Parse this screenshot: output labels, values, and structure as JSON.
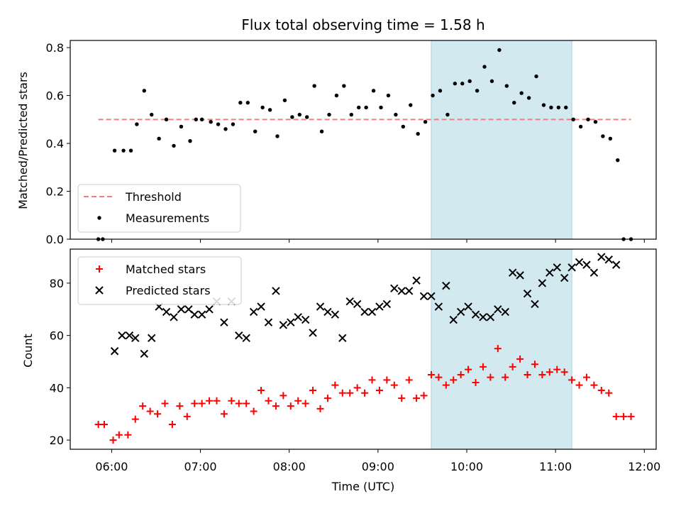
{
  "chart_data": [
    {
      "type": "scatter",
      "title": "Flux total observing time = 1.58 h",
      "xlabel": "",
      "ylabel": "Matched/Predicted stars",
      "xlim": [
        "05:32",
        "12:08"
      ],
      "ylim": [
        0.0,
        0.83
      ],
      "yticks": [
        0.0,
        0.2,
        0.4,
        0.6,
        0.8
      ],
      "ytick_labels": [
        "0.0",
        "0.2",
        "0.4",
        "0.6",
        "0.8"
      ],
      "highlight_span": {
        "start": "09:36",
        "end": "11:11",
        "color": "#d3e9f0"
      },
      "legend": {
        "position": "lower-left",
        "entries": [
          "Threshold",
          "Measurements"
        ]
      },
      "series": [
        {
          "name": "Threshold",
          "kind": "dashed-line",
          "color": "#f08080",
          "x": [
            "05:51",
            "11:51"
          ],
          "y": [
            0.5,
            0.5
          ]
        },
        {
          "name": "Measurements",
          "kind": "dot",
          "color": "#000000",
          "x": [
            "05:51",
            "05:54",
            "06:02",
            "06:08",
            "06:13",
            "06:17",
            "06:22",
            "06:27",
            "06:32",
            "06:37",
            "06:42",
            "06:47",
            "06:53",
            "06:57",
            "07:01",
            "07:07",
            "07:12",
            "07:17",
            "07:22",
            "07:27",
            "07:32",
            "07:37",
            "07:42",
            "07:47",
            "07:52",
            "07:57",
            "08:02",
            "08:07",
            "08:12",
            "08:17",
            "08:22",
            "08:27",
            "08:32",
            "08:37",
            "08:42",
            "08:47",
            "08:52",
            "08:57",
            "09:02",
            "09:07",
            "09:12",
            "09:17",
            "09:22",
            "09:27",
            "09:32",
            "09:37",
            "09:42",
            "09:47",
            "09:52",
            "09:57",
            "10:02",
            "10:07",
            "10:12",
            "10:17",
            "10:22",
            "10:27",
            "10:32",
            "10:37",
            "10:42",
            "10:47",
            "10:52",
            "10:57",
            "11:02",
            "11:07",
            "11:12",
            "11:17",
            "11:22",
            "11:27",
            "11:32",
            "11:37",
            "11:42",
            "11:46",
            "11:51"
          ],
          "y": [
            0.0,
            0.0,
            0.37,
            0.37,
            0.37,
            0.48,
            0.62,
            0.52,
            0.42,
            0.5,
            0.39,
            0.47,
            0.41,
            0.5,
            0.5,
            0.49,
            0.48,
            0.46,
            0.48,
            0.57,
            0.57,
            0.45,
            0.55,
            0.54,
            0.43,
            0.58,
            0.51,
            0.52,
            0.51,
            0.64,
            0.45,
            0.52,
            0.6,
            0.64,
            0.52,
            0.55,
            0.55,
            0.62,
            0.55,
            0.6,
            0.52,
            0.47,
            0.56,
            0.44,
            0.49,
            0.6,
            0.62,
            0.52,
            0.65,
            0.65,
            0.66,
            0.62,
            0.72,
            0.66,
            0.79,
            0.64,
            0.57,
            0.61,
            0.59,
            0.68,
            0.56,
            0.55,
            0.55,
            0.55,
            0.5,
            0.47,
            0.5,
            0.49,
            0.43,
            0.42,
            0.33,
            0.0,
            0.0
          ]
        }
      ]
    },
    {
      "type": "scatter",
      "title": "",
      "xlabel": "Time (UTC)",
      "ylabel": "Count",
      "xlim": [
        "05:32",
        "12:08"
      ],
      "ylim": [
        16.5,
        93
      ],
      "xticks": [
        "06:00",
        "07:00",
        "08:00",
        "09:00",
        "10:00",
        "11:00",
        "12:00"
      ],
      "yticks": [
        20,
        40,
        60,
        80
      ],
      "ytick_labels": [
        "20",
        "40",
        "60",
        "80"
      ],
      "highlight_span": {
        "start": "09:36",
        "end": "11:11",
        "color": "#d3e9f0"
      },
      "legend": {
        "position": "upper-left",
        "entries": [
          "Matched stars",
          "Predicted stars"
        ]
      },
      "series": [
        {
          "name": "Matched stars",
          "kind": "plus",
          "color": "#ff0000",
          "x": [
            "05:51",
            "05:55",
            "06:01",
            "06:05",
            "06:11",
            "06:16",
            "06:21",
            "06:26",
            "06:31",
            "06:36",
            "06:41",
            "06:46",
            "06:51",
            "06:56",
            "07:01",
            "07:06",
            "07:11",
            "07:16",
            "07:21",
            "07:26",
            "07:31",
            "07:36",
            "07:41",
            "07:46",
            "07:51",
            "07:56",
            "08:01",
            "08:06",
            "08:11",
            "08:16",
            "08:21",
            "08:26",
            "08:31",
            "08:36",
            "08:41",
            "08:46",
            "08:51",
            "08:56",
            "09:01",
            "09:06",
            "09:11",
            "09:16",
            "09:21",
            "09:26",
            "09:31",
            "09:36",
            "09:41",
            "09:46",
            "09:51",
            "09:56",
            "10:01",
            "10:06",
            "10:11",
            "10:16",
            "10:21",
            "10:26",
            "10:31",
            "10:36",
            "10:41",
            "10:46",
            "10:51",
            "10:56",
            "11:01",
            "11:06",
            "11:11",
            "11:16",
            "11:21",
            "11:26",
            "11:31",
            "11:36",
            "11:41",
            "11:46",
            "11:51"
          ],
          "y": [
            26,
            26,
            20,
            22,
            22,
            28,
            33,
            31,
            30,
            34,
            26,
            33,
            29,
            34,
            34,
            35,
            35,
            30,
            35,
            34,
            34,
            31,
            39,
            35,
            33,
            37,
            33,
            35,
            34,
            39,
            32,
            36,
            41,
            38,
            38,
            40,
            38,
            43,
            39,
            43,
            41,
            36,
            43,
            36,
            37,
            45,
            44,
            41,
            43,
            45,
            47,
            42,
            48,
            44,
            55,
            44,
            48,
            51,
            45,
            49,
            45,
            46,
            47,
            46,
            43,
            41,
            44,
            41,
            39,
            38,
            29,
            29,
            29
          ]
        },
        {
          "name": "Predicted stars",
          "kind": "x",
          "color": "#000000",
          "x": [
            "06:02",
            "06:07",
            "06:12",
            "06:16",
            "06:22",
            "06:27",
            "06:32",
            "06:37",
            "06:42",
            "06:47",
            "06:52",
            "06:56",
            "07:01",
            "07:06",
            "07:11",
            "07:16",
            "07:21",
            "07:26",
            "07:31",
            "07:36",
            "07:41",
            "07:46",
            "07:51",
            "07:56",
            "08:01",
            "08:06",
            "08:11",
            "08:16",
            "08:21",
            "08:26",
            "08:31",
            "08:36",
            "08:41",
            "08:46",
            "08:51",
            "08:56",
            "09:01",
            "09:06",
            "09:11",
            "09:16",
            "09:21",
            "09:26",
            "09:31",
            "09:36",
            "09:41",
            "09:46",
            "09:51",
            "09:56",
            "10:01",
            "10:06",
            "10:11",
            "10:16",
            "10:21",
            "10:26",
            "10:31",
            "10:36",
            "10:41",
            "10:46",
            "10:51",
            "10:56",
            "11:01",
            "11:06",
            "11:11",
            "11:16",
            "11:21",
            "11:26",
            "11:31",
            "11:36",
            "11:41"
          ],
          "y": [
            54,
            60,
            60,
            59,
            53,
            59,
            71,
            69,
            67,
            70,
            70,
            68,
            68,
            70,
            73,
            65,
            73,
            60,
            59,
            69,
            71,
            65,
            77,
            64,
            65,
            67,
            66,
            61,
            71,
            69,
            68,
            59,
            73,
            72,
            69,
            69,
            71,
            72,
            78,
            77,
            77,
            81,
            75,
            75,
            71,
            79,
            66,
            69,
            71,
            68,
            67,
            67,
            70,
            69,
            84,
            83,
            76,
            72,
            80,
            84,
            86,
            82,
            86,
            88,
            87,
            84,
            90,
            89,
            87
          ]
        }
      ]
    }
  ]
}
